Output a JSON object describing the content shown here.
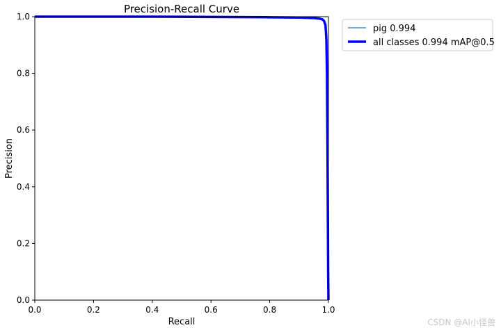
{
  "chart_data": {
    "type": "line",
    "title": "Precision-Recall Curve",
    "xlabel": "Recall",
    "ylabel": "Precision",
    "xlim": [
      0,
      1
    ],
    "ylim": [
      0,
      1
    ],
    "xticks": [
      "0.0",
      "0.2",
      "0.4",
      "0.6",
      "0.8",
      "1.0"
    ],
    "yticks": [
      "0.0",
      "0.2",
      "0.4",
      "0.6",
      "0.8",
      "1.0"
    ],
    "grid": false,
    "legend_position": "outside-top-right",
    "series": [
      {
        "name": "pig 0.994",
        "color": "#1f77b4",
        "style": "thin",
        "x": [
          0,
          0.2,
          0.4,
          0.6,
          0.8,
          0.9,
          0.95,
          0.97,
          0.98,
          0.985,
          0.99,
          0.993,
          0.995,
          0.997,
          0.998,
          0.999,
          1.0
        ],
        "y": [
          1.0,
          1.0,
          1.0,
          0.999,
          0.998,
          0.997,
          0.995,
          0.993,
          0.99,
          0.985,
          0.97,
          0.92,
          0.8,
          0.5,
          0.3,
          0.1,
          0.0
        ]
      },
      {
        "name": "all classes 0.994 mAP@0.5",
        "color": "#0000ff",
        "style": "thick",
        "x": [
          0,
          0.2,
          0.4,
          0.6,
          0.8,
          0.9,
          0.95,
          0.97,
          0.98,
          0.985,
          0.99,
          0.993,
          0.995,
          0.997,
          0.998,
          0.999,
          1.0
        ],
        "y": [
          1.0,
          1.0,
          1.0,
          0.999,
          0.998,
          0.997,
          0.995,
          0.993,
          0.99,
          0.985,
          0.97,
          0.92,
          0.8,
          0.5,
          0.3,
          0.1,
          0.0
        ]
      }
    ]
  },
  "watermark": "CSDN @AI小怪兽"
}
